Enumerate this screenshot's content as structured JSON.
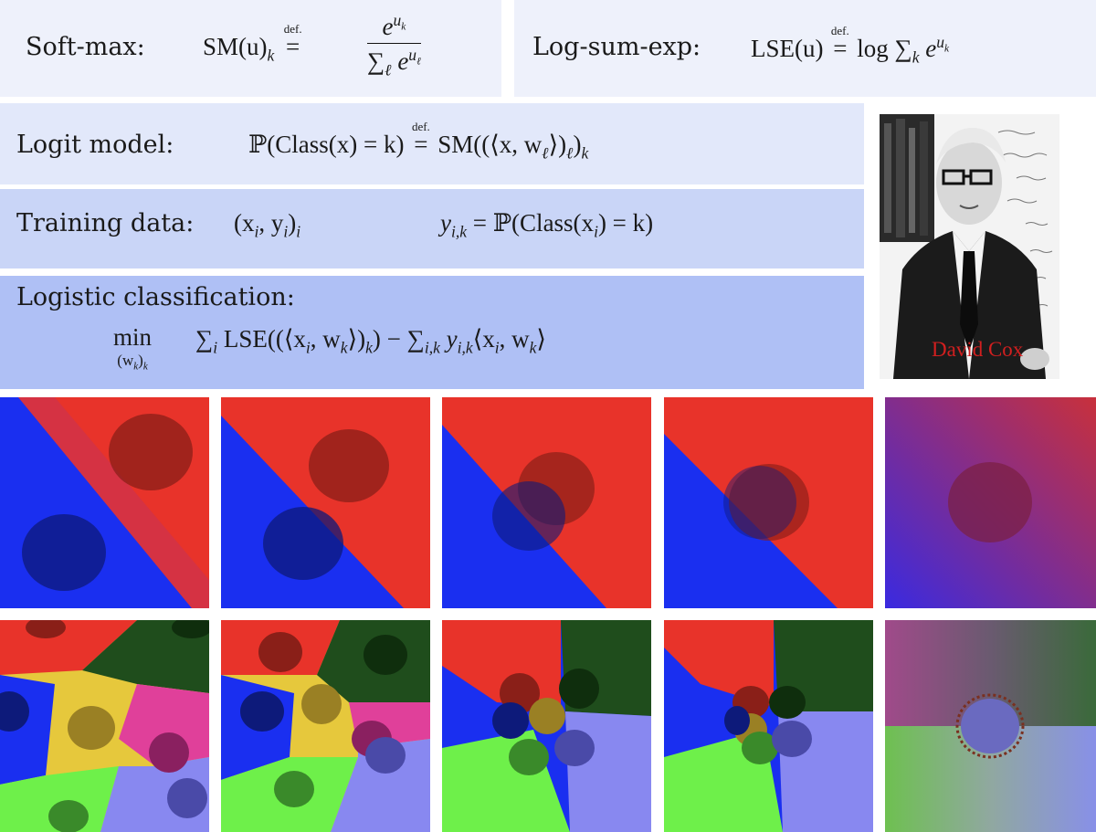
{
  "formulas": {
    "softmax": {
      "label": "Soft-max:",
      "lhs": "SM(u)",
      "lhs_sub": "k",
      "def": "def.",
      "num": "e",
      "num_sup": "u",
      "num_sup_sub": "k",
      "den": "∑",
      "den_sub": "ℓ",
      "den_e": "e",
      "den_sup": "u",
      "den_sup_sub": "ℓ"
    },
    "lse": {
      "label": "Log-sum-exp:",
      "lhs": "LSE(u)",
      "def": "def.",
      "rhs": "log ∑",
      "rhs_sub": "k",
      "rhs_e": "e",
      "rhs_sup": "u",
      "rhs_sup_sub": "k"
    },
    "logit": {
      "label": "Logit model:",
      "lhs": "ℙ(Class(x) = k)",
      "def": "def.",
      "rhs": "SM((⟨x, w",
      "rhs_sub": "ℓ",
      "rhs_tail": "⟩)",
      "rhs_sub2": "ℓ",
      "rhs_end": ")",
      "rhs_sub3": "k"
    },
    "training": {
      "label": "Training data:",
      "pair": "(x",
      "pair_i": "i",
      "pair_mid": ", y",
      "pair_i2": "i",
      "pair_end": ")",
      "pair_sub": "i",
      "y": "y",
      "y_sub": "i,k",
      "y_rhs": "= ℙ(Class(x",
      "y_rhs_sub": "i",
      "y_rhs_end": ") = k)"
    },
    "logistic": {
      "label": "Logistic classification:",
      "min": "min",
      "min_sub": "(w",
      "min_sub_k": "k",
      "min_sub_end": ")",
      "min_sub_k2": "k",
      "sum1": "∑",
      "sum1_sub": "i",
      "term1": "LSE((⟨x",
      "term1_i": "i",
      "term1_mid": ", w",
      "term1_k": "k",
      "term1_end": "⟩)",
      "term1_k2": "k",
      "term1_close": ")",
      "minus": "−",
      "sum2": "∑",
      "sum2_sub": "i,k",
      "y": "y",
      "y_sub": "i,k",
      "inner": "⟨x",
      "inner_i": "i",
      "inner_mid": ", w",
      "inner_k": "k",
      "inner_end": "⟩"
    }
  },
  "portrait": {
    "name": "David Cox"
  },
  "colors": {
    "red": "#e8332a",
    "blue": "#1a2ff0",
    "yellow": "#e6c83c",
    "darkgreen": "#1f4d1c",
    "magenta": "#e0409a",
    "lightgreen": "#6ef04a",
    "periwinkle": "#8888f0"
  }
}
